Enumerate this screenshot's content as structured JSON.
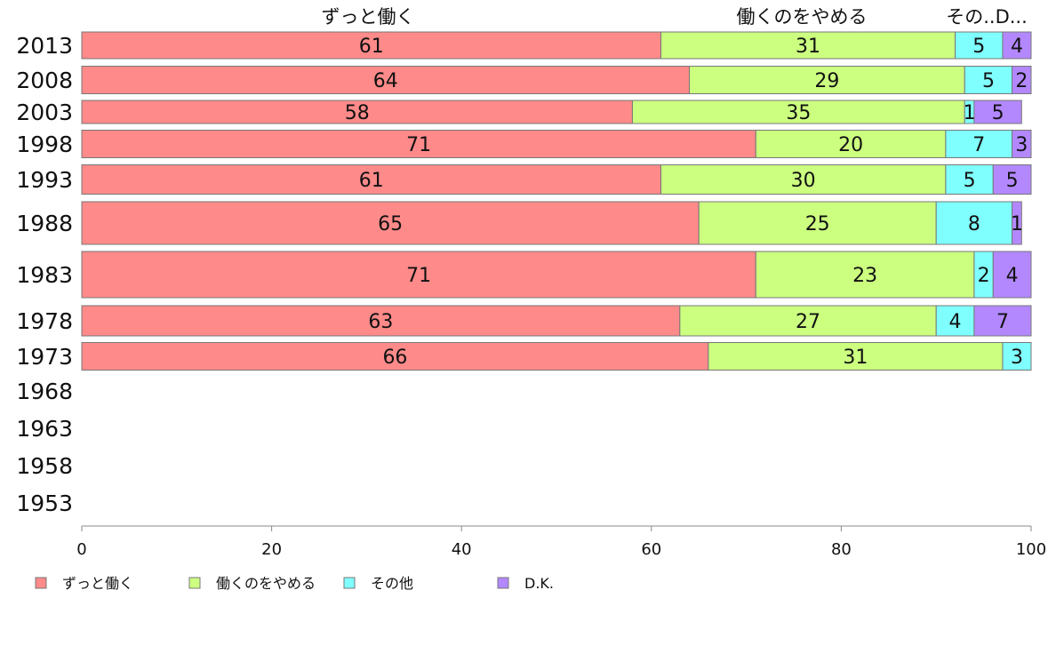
{
  "chart_data": {
    "type": "bar",
    "orientation": "horizontal",
    "stacked": true,
    "categories": [
      "2013",
      "2008",
      "2003",
      "1998",
      "1993",
      "1988",
      "1983",
      "1978",
      "1973",
      "1968",
      "1963",
      "1958",
      "1953"
    ],
    "series": [
      {
        "name": "ずっと働く",
        "color": "#ff8a8a",
        "values": [
          61,
          64,
          58,
          71,
          61,
          65,
          71,
          63,
          66,
          null,
          null,
          null,
          null
        ]
      },
      {
        "name": "働くのをやめる",
        "color": "#ccff80",
        "values": [
          31,
          29,
          35,
          20,
          30,
          25,
          23,
          27,
          31,
          null,
          null,
          null,
          null
        ]
      },
      {
        "name": "その他",
        "color": "#80ffff",
        "values": [
          5,
          5,
          1,
          7,
          5,
          8,
          2,
          4,
          3,
          null,
          null,
          null,
          null
        ]
      },
      {
        "name": "D.K.",
        "color": "#b388ff",
        "values": [
          4,
          2,
          5,
          3,
          5,
          1,
          4,
          7,
          null,
          null,
          null,
          null,
          null
        ]
      }
    ],
    "top_labels": [
      "ずっと働く",
      "働くのをやめる",
      "その..D..."
    ],
    "xlim": [
      0,
      100
    ],
    "xticks": [
      0,
      20,
      40,
      60,
      80,
      100
    ],
    "xlabel": "",
    "ylabel": "",
    "title": "",
    "grid": false,
    "legend": {
      "position": "bottom-left"
    }
  }
}
